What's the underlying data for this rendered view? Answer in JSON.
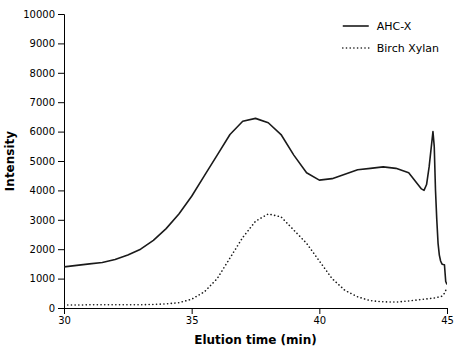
{
  "chart_data": {
    "type": "line",
    "xlabel": "Elution time (min)",
    "ylabel": "Intensity",
    "xlim": [
      30,
      45
    ],
    "ylim": [
      0,
      10000
    ],
    "xticks": [
      30,
      35,
      40,
      45
    ],
    "yticks": [
      0,
      1000,
      2000,
      3000,
      4000,
      5000,
      6000,
      7000,
      8000,
      9000,
      10000
    ],
    "grid": false,
    "legend": "upper-right",
    "series": [
      {
        "name": "AHC-X",
        "color": "#1a1a1a",
        "line_style": "solid",
        "x": [
          30.0,
          30.5,
          31.0,
          31.5,
          32.0,
          32.5,
          33.0,
          33.5,
          34.0,
          34.5,
          35.0,
          35.5,
          36.0,
          36.5,
          37.0,
          37.5,
          38.0,
          38.5,
          39.0,
          39.5,
          40.0,
          40.5,
          41.0,
          41.5,
          42.0,
          42.5,
          43.0,
          43.5,
          44.0,
          44.1,
          44.2,
          44.3,
          44.4,
          44.45,
          44.5,
          44.55,
          44.6,
          44.65,
          44.7,
          44.75,
          44.8,
          44.85,
          44.9,
          44.95,
          45.0
        ],
        "values": [
          1400,
          1450,
          1500,
          1550,
          1650,
          1800,
          2000,
          2300,
          2700,
          3200,
          3800,
          4500,
          5200,
          5900,
          6350,
          6450,
          6300,
          5900,
          5200,
          4600,
          4350,
          4400,
          4550,
          4700,
          4750,
          4800,
          4750,
          4600,
          4050,
          4000,
          4200,
          4800,
          5600,
          6000,
          5500,
          4000,
          3000,
          2200,
          1800,
          1600,
          1500,
          1480,
          1470,
          900,
          800
        ]
      },
      {
        "name": "Birch Xylan",
        "color": "#1a1a1a",
        "line_style": "dotted",
        "x": [
          30.0,
          30.5,
          31.0,
          31.5,
          32.0,
          32.5,
          33.0,
          33.5,
          34.0,
          34.5,
          35.0,
          35.5,
          36.0,
          36.5,
          37.0,
          37.5,
          38.0,
          38.5,
          39.0,
          39.5,
          40.0,
          40.5,
          41.0,
          41.5,
          42.0,
          42.5,
          43.0,
          43.5,
          44.0,
          44.5,
          44.8,
          44.9,
          45.0
        ],
        "values": [
          100,
          100,
          110,
          110,
          110,
          110,
          110,
          120,
          140,
          180,
          300,
          550,
          1000,
          1700,
          2400,
          2950,
          3200,
          3100,
          2650,
          2200,
          1600,
          1000,
          600,
          380,
          250,
          210,
          200,
          240,
          290,
          340,
          400,
          500,
          700
        ]
      }
    ]
  }
}
